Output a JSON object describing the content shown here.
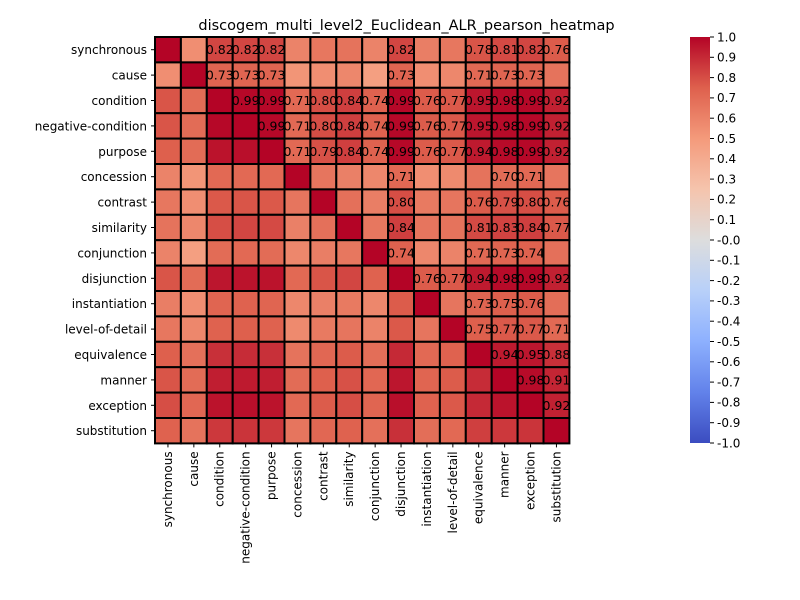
{
  "chart_data": {
    "type": "heatmap",
    "title": "discogem_multi_level2_Euclidean_ALR_pearson_heatmap",
    "xlabel": "",
    "ylabel": "",
    "labels": [
      "synchronous",
      "cause",
      "condition",
      "negative-condition",
      "purpose",
      "concession",
      "contrast",
      "similarity",
      "conjunction",
      "disjunction",
      "instantiation",
      "level-of-detail",
      "equivalence",
      "manner",
      "exception",
      "substitution"
    ],
    "matrix": [
      [
        1.0,
        0.55,
        0.82,
        0.82,
        0.82,
        0.6,
        0.65,
        0.67,
        0.6,
        0.82,
        0.62,
        0.65,
        0.78,
        0.81,
        0.82,
        0.76
      ],
      [
        0.55,
        1.0,
        0.73,
        0.73,
        0.73,
        0.52,
        0.55,
        0.58,
        0.47,
        0.73,
        0.55,
        0.58,
        0.71,
        0.73,
        0.73,
        0.67
      ],
      [
        0.78,
        0.7,
        1.0,
        0.99,
        0.99,
        0.71,
        0.8,
        0.84,
        0.74,
        0.99,
        0.76,
        0.77,
        0.95,
        0.98,
        0.99,
        0.92
      ],
      [
        0.78,
        0.7,
        0.99,
        1.0,
        0.99,
        0.71,
        0.8,
        0.84,
        0.74,
        0.99,
        0.76,
        0.77,
        0.95,
        0.98,
        0.99,
        0.92
      ],
      [
        0.75,
        0.7,
        0.96,
        0.97,
        1.0,
        0.71,
        0.79,
        0.84,
        0.74,
        0.99,
        0.76,
        0.77,
        0.94,
        0.98,
        0.99,
        0.92
      ],
      [
        0.6,
        0.52,
        0.71,
        0.71,
        0.71,
        1.0,
        0.66,
        0.61,
        0.58,
        0.71,
        0.55,
        0.57,
        0.67,
        0.7,
        0.71,
        0.66
      ],
      [
        0.65,
        0.55,
        0.77,
        0.78,
        0.77,
        0.66,
        1.0,
        0.68,
        0.62,
        0.8,
        0.64,
        0.66,
        0.76,
        0.79,
        0.8,
        0.76
      ],
      [
        0.67,
        0.58,
        0.8,
        0.82,
        0.81,
        0.61,
        0.68,
        1.0,
        0.65,
        0.84,
        0.66,
        0.67,
        0.81,
        0.83,
        0.84,
        0.77
      ],
      [
        0.6,
        0.47,
        0.7,
        0.71,
        0.7,
        0.58,
        0.62,
        0.65,
        1.0,
        0.74,
        0.58,
        0.6,
        0.71,
        0.73,
        0.74,
        0.68
      ],
      [
        0.78,
        0.7,
        0.95,
        0.96,
        0.96,
        0.71,
        0.78,
        0.82,
        0.74,
        1.0,
        0.76,
        0.77,
        0.94,
        0.98,
        0.99,
        0.92
      ],
      [
        0.62,
        0.55,
        0.73,
        0.74,
        0.73,
        0.58,
        0.61,
        0.64,
        0.58,
        0.76,
        1.0,
        0.66,
        0.73,
        0.75,
        0.76,
        0.69
      ],
      [
        0.65,
        0.58,
        0.74,
        0.75,
        0.74,
        0.57,
        0.64,
        0.66,
        0.6,
        0.77,
        0.66,
        1.0,
        0.75,
        0.77,
        0.77,
        0.71
      ],
      [
        0.75,
        0.68,
        0.88,
        0.89,
        0.88,
        0.67,
        0.72,
        0.76,
        0.69,
        0.9,
        0.71,
        0.74,
        1.0,
        0.94,
        0.95,
        0.88
      ],
      [
        0.78,
        0.7,
        0.93,
        0.94,
        0.93,
        0.7,
        0.75,
        0.79,
        0.72,
        0.95,
        0.73,
        0.76,
        0.89,
        1.0,
        0.98,
        0.91
      ],
      [
        0.8,
        0.72,
        0.96,
        0.97,
        0.96,
        0.71,
        0.76,
        0.8,
        0.73,
        0.97,
        0.74,
        0.77,
        0.9,
        0.96,
        1.0,
        0.92
      ],
      [
        0.74,
        0.67,
        0.86,
        0.87,
        0.86,
        0.66,
        0.72,
        0.74,
        0.68,
        0.88,
        0.69,
        0.71,
        0.84,
        0.86,
        0.87,
        1.0
      ]
    ],
    "vmin": -1.0,
    "vmax": 1.0,
    "annot_threshold": 0.7,
    "colormap": "coolwarm",
    "cell_border_color": "#000000",
    "colorbar_ticks": [
      "1.0",
      "0.9",
      "0.8",
      "0.7",
      "0.6",
      "0.5",
      "0.4",
      "0.3",
      "0.2",
      "0.1",
      "-0.0",
      "-0.1",
      "-0.2",
      "-0.3",
      "-0.4",
      "-0.5",
      "-0.6",
      "-0.7",
      "-0.8",
      "-0.9",
      "-1.0"
    ],
    "grid": false,
    "legend": "colorbar-right"
  }
}
